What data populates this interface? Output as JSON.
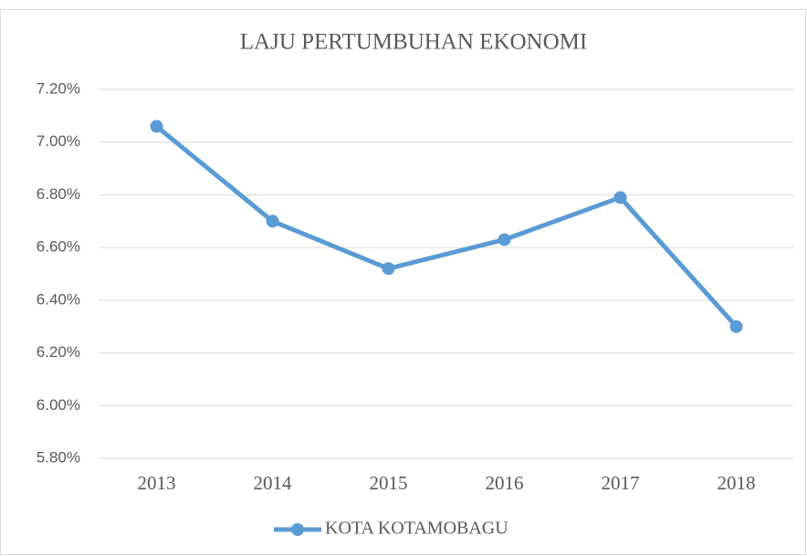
{
  "chart_data": {
    "type": "line",
    "title": "LAJU PERTUMBUHAN EKONOMI",
    "categories": [
      "2013",
      "2014",
      "2015",
      "2016",
      "2017",
      "2018"
    ],
    "series": [
      {
        "name": "KOTA KOTAMOBAGU",
        "color": "#5b9bd5",
        "values": [
          7.06,
          6.7,
          6.52,
          6.63,
          6.79,
          6.3
        ]
      }
    ],
    "ylim": [
      5.8,
      7.2
    ],
    "yticks": [
      {
        "value": 5.8,
        "label": "5.80%"
      },
      {
        "value": 6.0,
        "label": "6.00%"
      },
      {
        "value": 6.2,
        "label": "6.20%"
      },
      {
        "value": 6.4,
        "label": "6.40%"
      },
      {
        "value": 6.6,
        "label": "6.60%"
      },
      {
        "value": 6.8,
        "label": "6.80%"
      },
      {
        "value": 7.0,
        "label": "7.00%"
      },
      {
        "value": 7.2,
        "label": "7.20%"
      }
    ],
    "grid": true,
    "legend": "bottom"
  }
}
